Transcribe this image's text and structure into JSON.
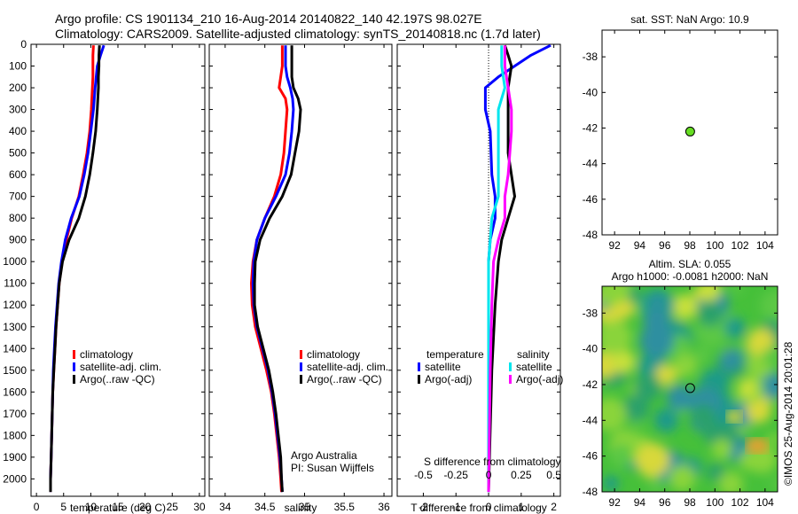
{
  "header": {
    "line1": "Argo profile: CS 1901134_210 16-Aug-2014 20140822_140 42.197S 98.027E",
    "line2": "Climatology: CARS2009. Satellite-adjusted climatology: synTS_20140818.nc (1.7d later)"
  },
  "colors": {
    "climatology": "#ff0000",
    "satellite": "#0000ff",
    "argo": "#000000",
    "salinity_satellite": "#00e5ee",
    "salinity_argo": "#ff00ff",
    "float_marker": "#66dd22"
  },
  "chart_data": [
    {
      "type": "line",
      "name": "temperature-profile",
      "xlabel": "temperature (deg C)",
      "xlim": [
        -1,
        31
      ],
      "xticks": [
        0,
        5,
        10,
        15,
        20,
        25,
        30
      ],
      "ylim": [
        0,
        2080
      ],
      "yticks": [
        0,
        100,
        200,
        300,
        400,
        500,
        600,
        700,
        800,
        900,
        1000,
        1100,
        1200,
        1300,
        1400,
        1500,
        1600,
        1700,
        1800,
        1900,
        2000
      ],
      "y_reversed": true,
      "legend": [
        "climatology",
        "satellite-adj. clim.",
        "Argo(..raw -QC)"
      ],
      "series": [
        {
          "name": "climatology",
          "color": "#ff0000",
          "points": [
            [
              10.5,
              5
            ],
            [
              10.4,
              50
            ],
            [
              10.4,
              100
            ],
            [
              10.4,
              150
            ],
            [
              10.3,
              200
            ],
            [
              10.1,
              300
            ],
            [
              9.8,
              400
            ],
            [
              9.3,
              500
            ],
            [
              8.6,
              600
            ],
            [
              7.8,
              700
            ],
            [
              6.5,
              800
            ],
            [
              5.5,
              900
            ],
            [
              4.7,
              1000
            ],
            [
              4.2,
              1100
            ],
            [
              3.9,
              1200
            ],
            [
              3.6,
              1300
            ],
            [
              3.4,
              1400
            ],
            [
              3.2,
              1500
            ],
            [
              3.0,
              1600
            ],
            [
              2.9,
              1700
            ],
            [
              2.8,
              1800
            ],
            [
              2.7,
              1900
            ],
            [
              2.6,
              2000
            ],
            [
              2.6,
              2060
            ]
          ]
        },
        {
          "name": "satellite-adj. clim.",
          "color": "#0000ff",
          "points": [
            [
              12.4,
              5
            ],
            [
              11.8,
              50
            ],
            [
              11.2,
              100
            ],
            [
              11.0,
              150
            ],
            [
              10.8,
              200
            ],
            [
              10.5,
              300
            ],
            [
              10.0,
              400
            ],
            [
              9.5,
              500
            ],
            [
              8.8,
              600
            ],
            [
              7.9,
              700
            ],
            [
              6.4,
              800
            ],
            [
              5.3,
              900
            ],
            [
              4.6,
              1000
            ],
            [
              4.1,
              1100
            ],
            [
              3.8,
              1200
            ],
            [
              3.5,
              1300
            ],
            [
              3.3,
              1400
            ],
            [
              3.1,
              1500
            ],
            [
              3.0,
              1600
            ],
            [
              2.9,
              1700
            ],
            [
              2.8,
              1800
            ],
            [
              2.7,
              1900
            ],
            [
              2.6,
              2000
            ],
            [
              2.6,
              2060
            ]
          ]
        },
        {
          "name": "Argo(..raw -QC)",
          "color": "#000000",
          "points": [
            [
              11.6,
              5
            ],
            [
              11.5,
              50
            ],
            [
              11.5,
              100
            ],
            [
              11.4,
              150
            ],
            [
              11.4,
              200
            ],
            [
              11.2,
              300
            ],
            [
              10.9,
              400
            ],
            [
              10.4,
              500
            ],
            [
              9.8,
              600
            ],
            [
              9.0,
              700
            ],
            [
              7.8,
              800
            ],
            [
              6.0,
              900
            ],
            [
              4.8,
              1000
            ],
            [
              4.2,
              1100
            ],
            [
              3.9,
              1200
            ],
            [
              3.6,
              1300
            ],
            [
              3.4,
              1400
            ],
            [
              3.2,
              1500
            ],
            [
              3.0,
              1600
            ],
            [
              2.9,
              1700
            ],
            [
              2.8,
              1800
            ],
            [
              2.7,
              1900
            ],
            [
              2.6,
              2000
            ],
            [
              2.6,
              2060
            ]
          ]
        }
      ]
    },
    {
      "type": "line",
      "name": "salinity-profile",
      "xlabel": "salinity",
      "xlim": [
        33.8,
        36.1
      ],
      "xticks": [
        34,
        34.5,
        35,
        35.5,
        36
      ],
      "ylim": [
        0,
        2080
      ],
      "y_reversed": true,
      "legend": [
        "climatology",
        "satellite-adj. clim.",
        "Argo(..raw -QC)"
      ],
      "annotation": [
        "Argo Australia",
        "PI: Susan Wijffels"
      ],
      "series": [
        {
          "name": "climatology",
          "color": "#ff0000",
          "points": [
            [
              34.72,
              5
            ],
            [
              34.72,
              50
            ],
            [
              34.72,
              100
            ],
            [
              34.7,
              150
            ],
            [
              34.68,
              200
            ],
            [
              34.76,
              250
            ],
            [
              34.78,
              300
            ],
            [
              34.76,
              400
            ],
            [
              34.74,
              500
            ],
            [
              34.7,
              600
            ],
            [
              34.62,
              700
            ],
            [
              34.5,
              800
            ],
            [
              34.4,
              900
            ],
            [
              34.35,
              1000
            ],
            [
              34.33,
              1100
            ],
            [
              34.34,
              1200
            ],
            [
              34.38,
              1300
            ],
            [
              34.45,
              1400
            ],
            [
              34.52,
              1500
            ],
            [
              34.58,
              1600
            ],
            [
              34.62,
              1700
            ],
            [
              34.65,
              1800
            ],
            [
              34.68,
              1900
            ],
            [
              34.7,
              2000
            ],
            [
              34.71,
              2060
            ]
          ]
        },
        {
          "name": "satellite-adj. clim.",
          "color": "#0000ff",
          "points": [
            [
              34.76,
              5
            ],
            [
              34.76,
              50
            ],
            [
              34.76,
              100
            ],
            [
              34.78,
              150
            ],
            [
              34.82,
              200
            ],
            [
              34.85,
              250
            ],
            [
              34.86,
              300
            ],
            [
              34.84,
              400
            ],
            [
              34.81,
              500
            ],
            [
              34.76,
              600
            ],
            [
              34.64,
              700
            ],
            [
              34.5,
              800
            ],
            [
              34.4,
              900
            ],
            [
              34.36,
              1000
            ],
            [
              34.35,
              1100
            ],
            [
              34.36,
              1200
            ],
            [
              34.4,
              1300
            ],
            [
              34.47,
              1400
            ],
            [
              34.54,
              1500
            ],
            [
              34.59,
              1600
            ],
            [
              34.63,
              1700
            ],
            [
              34.66,
              1800
            ],
            [
              34.69,
              1900
            ],
            [
              34.71,
              2000
            ],
            [
              34.72,
              2060
            ]
          ]
        },
        {
          "name": "Argo(..raw -QC)",
          "color": "#000000",
          "points": [
            [
              34.84,
              5
            ],
            [
              34.84,
              50
            ],
            [
              34.84,
              100
            ],
            [
              34.84,
              150
            ],
            [
              34.86,
              200
            ],
            [
              34.92,
              250
            ],
            [
              34.95,
              300
            ],
            [
              34.93,
              400
            ],
            [
              34.88,
              500
            ],
            [
              34.83,
              600
            ],
            [
              34.72,
              700
            ],
            [
              34.56,
              800
            ],
            [
              34.44,
              900
            ],
            [
              34.38,
              1000
            ],
            [
              34.37,
              1100
            ],
            [
              34.37,
              1200
            ],
            [
              34.41,
              1300
            ],
            [
              34.48,
              1400
            ],
            [
              34.55,
              1500
            ],
            [
              34.6,
              1600
            ],
            [
              34.64,
              1700
            ],
            [
              34.67,
              1800
            ],
            [
              34.7,
              1900
            ],
            [
              34.71,
              2000
            ],
            [
              34.72,
              2060
            ]
          ]
        }
      ]
    },
    {
      "type": "line",
      "name": "difference-profile",
      "xlabel": "T difference from climatology",
      "xlabel_top": "S difference from climatology",
      "xlim": [
        -2.8,
        2.2
      ],
      "xticks": [
        -2,
        -1,
        0,
        1,
        2
      ],
      "xticks_top": [
        "-0.5",
        "-0.25",
        "0",
        "0.25",
        "0.5"
      ],
      "xticks_top_positions": [
        -2,
        -1,
        0,
        1,
        2
      ],
      "ylim": [
        0,
        2080
      ],
      "y_reversed": true,
      "legend": {
        "temperature_header": "temperature",
        "salinity_header": "salinity",
        "temperature": [
          "satellite",
          "Argo(-adj)"
        ],
        "salinity": [
          "satellite",
          "Argo(-adj)"
        ]
      },
      "series": [
        {
          "name": "temperature satellite",
          "color": "#0000ff",
          "points": [
            [
              1.9,
              5
            ],
            [
              1.3,
              50
            ],
            [
              0.8,
              100
            ],
            [
              0.3,
              150
            ],
            [
              -0.1,
              200
            ],
            [
              -0.1,
              300
            ],
            [
              0.05,
              400
            ],
            [
              0.1,
              600
            ],
            [
              0.2,
              700
            ],
            [
              0.2,
              800
            ],
            [
              0.05,
              900
            ],
            [
              0.0,
              1000
            ],
            [
              0.0,
              1200
            ],
            [
              0.0,
              1500
            ],
            [
              0.0,
              2060
            ]
          ]
        },
        {
          "name": "temperature Argo(-adj)",
          "color": "#000000",
          "points": [
            [
              0.5,
              5
            ],
            [
              0.6,
              50
            ],
            [
              0.7,
              100
            ],
            [
              0.6,
              200
            ],
            [
              0.6,
              300
            ],
            [
              0.6,
              400
            ],
            [
              0.6,
              500
            ],
            [
              0.7,
              600
            ],
            [
              0.8,
              700
            ],
            [
              0.6,
              800
            ],
            [
              0.4,
              900
            ],
            [
              0.3,
              1000
            ],
            [
              0.2,
              1200
            ],
            [
              0.1,
              1500
            ],
            [
              0.0,
              2060
            ]
          ]
        },
        {
          "name": "salinity satellite",
          "color": "#00e5ee",
          "points": [
            [
              0.4,
              5
            ],
            [
              0.4,
              100
            ],
            [
              0.5,
              200
            ],
            [
              0.3,
              300
            ],
            [
              0.3,
              400
            ],
            [
              0.3,
              500
            ],
            [
              0.3,
              600
            ],
            [
              0.3,
              700
            ],
            [
              0.1,
              800
            ],
            [
              0.05,
              900
            ],
            [
              0.0,
              1000
            ],
            [
              0.0,
              1200
            ],
            [
              0.0,
              1500
            ],
            [
              0.0,
              2060
            ]
          ]
        },
        {
          "name": "salinity Argo(-adj)",
          "color": "#ff00ff",
          "points": [
            [
              0.5,
              5
            ],
            [
              0.5,
              100
            ],
            [
              0.6,
              200
            ],
            [
              0.7,
              300
            ],
            [
              0.7,
              400
            ],
            [
              0.65,
              500
            ],
            [
              0.6,
              600
            ],
            [
              0.5,
              700
            ],
            [
              0.5,
              800
            ],
            [
              0.3,
              900
            ],
            [
              0.15,
              1000
            ],
            [
              0.1,
              1200
            ],
            [
              0.05,
              1500
            ],
            [
              0.0,
              2060
            ]
          ]
        }
      ]
    },
    {
      "type": "scatter",
      "name": "sst-map",
      "title": "sat. SST: NaN Argo: 10.9",
      "xlim": [
        91,
        105
      ],
      "xticks": [
        92,
        94,
        96,
        98,
        100,
        102,
        104
      ],
      "ylim": [
        -48,
        -36.5
      ],
      "yticks": [
        -38,
        -40,
        -42,
        -44,
        -46,
        -48
      ],
      "points": [
        {
          "x": 98.027,
          "y": -42.197
        }
      ]
    },
    {
      "type": "heatmap",
      "name": "sla-map",
      "title": "Altim. SLA: 0.055",
      "subtitle": "Argo h1000: -0.0081 h2000: NaN",
      "xlim": [
        91,
        105
      ],
      "xticks": [
        92,
        94,
        96,
        98,
        100,
        102,
        104
      ],
      "ylim": [
        -48,
        -36.5
      ],
      "yticks": [
        -38,
        -40,
        -42,
        -44,
        -46,
        -48
      ],
      "points": [
        {
          "x": 98.027,
          "y": -42.197
        }
      ]
    }
  ],
  "footer": {
    "stamp": "©IMOS 25-Aug-2014 20:01:28"
  }
}
